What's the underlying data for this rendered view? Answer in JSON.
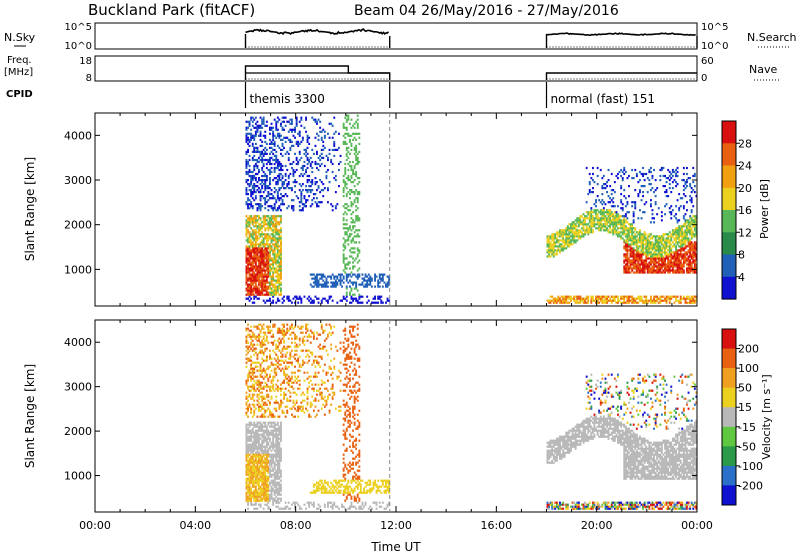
{
  "header": {
    "station": "Buckland Park (fitACF)",
    "beam_date": "Beam 04  26/May/2016 - 27/May/2016"
  },
  "side_labels": {
    "nsky": "N.Sky",
    "freq_line1": "Freq.",
    "freq_line2": "[MHz]",
    "cpid": "CPID",
    "nsearch": "N.Search",
    "nave": "Nave"
  },
  "top_axes": {
    "nsky_ticks_left": [
      "10^5",
      "10^0"
    ],
    "nsky_ticks_right": [
      "10^5",
      "10^0"
    ],
    "freq_ticks_left": [
      "18",
      "8"
    ],
    "nave_ticks_right": [
      "60",
      "0"
    ]
  },
  "cpid_segments": [
    {
      "label": "themis 3300",
      "start_hour": 6.0,
      "end_hour": 11.75
    },
    {
      "label": "normal (fast) 151",
      "start_hour": 18.0,
      "end_hour": 24.0
    }
  ],
  "chart_data": [
    {
      "type": "heatmap",
      "name": "power",
      "ylabel": "Slant Range [km]",
      "y_ticks": [
        "1000",
        "2000",
        "3000",
        "4000"
      ],
      "ylim": [
        180,
        4500
      ],
      "colorbar_label": "Power [dB]",
      "colorbar_ticks": [
        "4",
        "8",
        "12",
        "16",
        "20",
        "24",
        "28"
      ],
      "colorbar_colors": [
        "#1010d0",
        "#2060b8",
        "#2a8a4a",
        "#58b858",
        "#ecd020",
        "#f0a010",
        "#e86010",
        "#d81010"
      ]
    },
    {
      "type": "heatmap",
      "name": "velocity",
      "ylabel": "Slant Range [km]",
      "y_ticks": [
        "1000",
        "2000",
        "3000",
        "4000"
      ],
      "ylim": [
        180,
        4500
      ],
      "xlabel": "Time UT",
      "x_ticks": [
        "00:00",
        "04:00",
        "08:00",
        "12:00",
        "16:00",
        "20:00",
        "00:00"
      ],
      "xlim": [
        0,
        24
      ],
      "colorbar_label": "Velocity [m s⁻¹]",
      "colorbar_ticks": [
        "200",
        "100",
        "50",
        "15",
        "-15",
        "-50",
        "-100",
        "-200"
      ],
      "colorbar_colors": [
        "#1010d0",
        "#2a70c8",
        "#2a9a4a",
        "#60c840",
        "#b8b8b8",
        "#ecd020",
        "#f0a020",
        "#e86010",
        "#d81010"
      ]
    }
  ]
}
